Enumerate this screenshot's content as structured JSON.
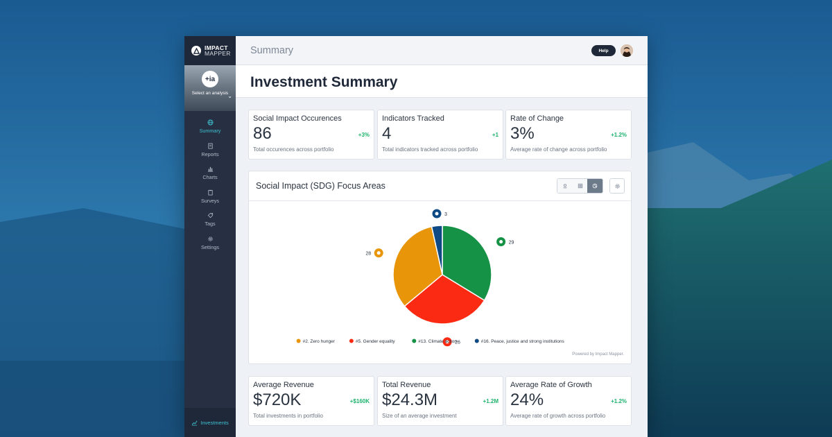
{
  "brand": {
    "name_line1": "IMPACT",
    "name_line2": "MAPPER"
  },
  "analysis": {
    "badge": "+ia",
    "label": "Select an analysis"
  },
  "sidebar": {
    "items": [
      {
        "label": "Summary",
        "icon": "globe-icon",
        "active": true
      },
      {
        "label": "Reports",
        "icon": "document-icon",
        "active": false
      },
      {
        "label": "Charts",
        "icon": "bar-chart-icon",
        "active": false
      },
      {
        "label": "Surveys",
        "icon": "clipboard-icon",
        "active": false
      },
      {
        "label": "Tags",
        "icon": "tag-icon",
        "active": false
      },
      {
        "label": "Settings",
        "icon": "gear-icon",
        "active": false
      }
    ],
    "bottom_label": "Investments"
  },
  "topbar": {
    "title": "Summary",
    "help_label": "Help"
  },
  "page": {
    "title": "Investment Summary"
  },
  "stats_top": [
    {
      "label": "Social Impact Occurences",
      "value": "86",
      "delta": "+3%",
      "desc": "Total occurences across portfolio"
    },
    {
      "label": "Indicators Tracked",
      "value": "4",
      "delta": "+1",
      "desc": "Total indicators tracked across portfolio"
    },
    {
      "label": "Rate of Change",
      "value": "3%",
      "delta": "+1.2%",
      "desc": "Average rate of change across portfolio"
    }
  ],
  "stats_bottom": [
    {
      "label": "Average Revenue",
      "value": "$720K",
      "delta": "+$160K",
      "desc": "Total investments in portfolio"
    },
    {
      "label": "Total Revenue",
      "value": "$24.3M",
      "delta": "+1.2M",
      "desc": "Size of an average investment"
    },
    {
      "label": "Average Rate of Growth",
      "value": "24%",
      "delta": "+1.2%",
      "desc": "Average rate of growth across portfolio"
    }
  ],
  "chart_card": {
    "title": "Social Impact (SDG) Focus Areas",
    "powered_by": "Powered by Impact Mapper."
  },
  "colors": {
    "accent": "#3fc1d2",
    "positive": "#1cb26b",
    "sidebar": "#263042"
  },
  "chart_data": {
    "type": "pie",
    "title": "Social Impact (SDG) Focus Areas",
    "legend_position": "bottom",
    "slices": [
      {
        "name": "#13. Climate action",
        "value": 29,
        "color": "#159245",
        "icon": "eye-earth-icon"
      },
      {
        "name": "#5. Gender equality",
        "value": 26,
        "color": "#fb2b13",
        "icon": "gender-icon"
      },
      {
        "name": "#2. Zero hunger",
        "value": 28,
        "color": "#e8950a",
        "icon": "bowl-icon"
      },
      {
        "name": "#16. Peace, justice and strong institutions",
        "value": 3,
        "color": "#0f4a85",
        "icon": "dove-icon"
      }
    ],
    "legend_order": [
      "#2. Zero hunger",
      "#5. Gender equality",
      "#13. Climate action",
      "#16. Peace, justice and strong institutions"
    ]
  }
}
